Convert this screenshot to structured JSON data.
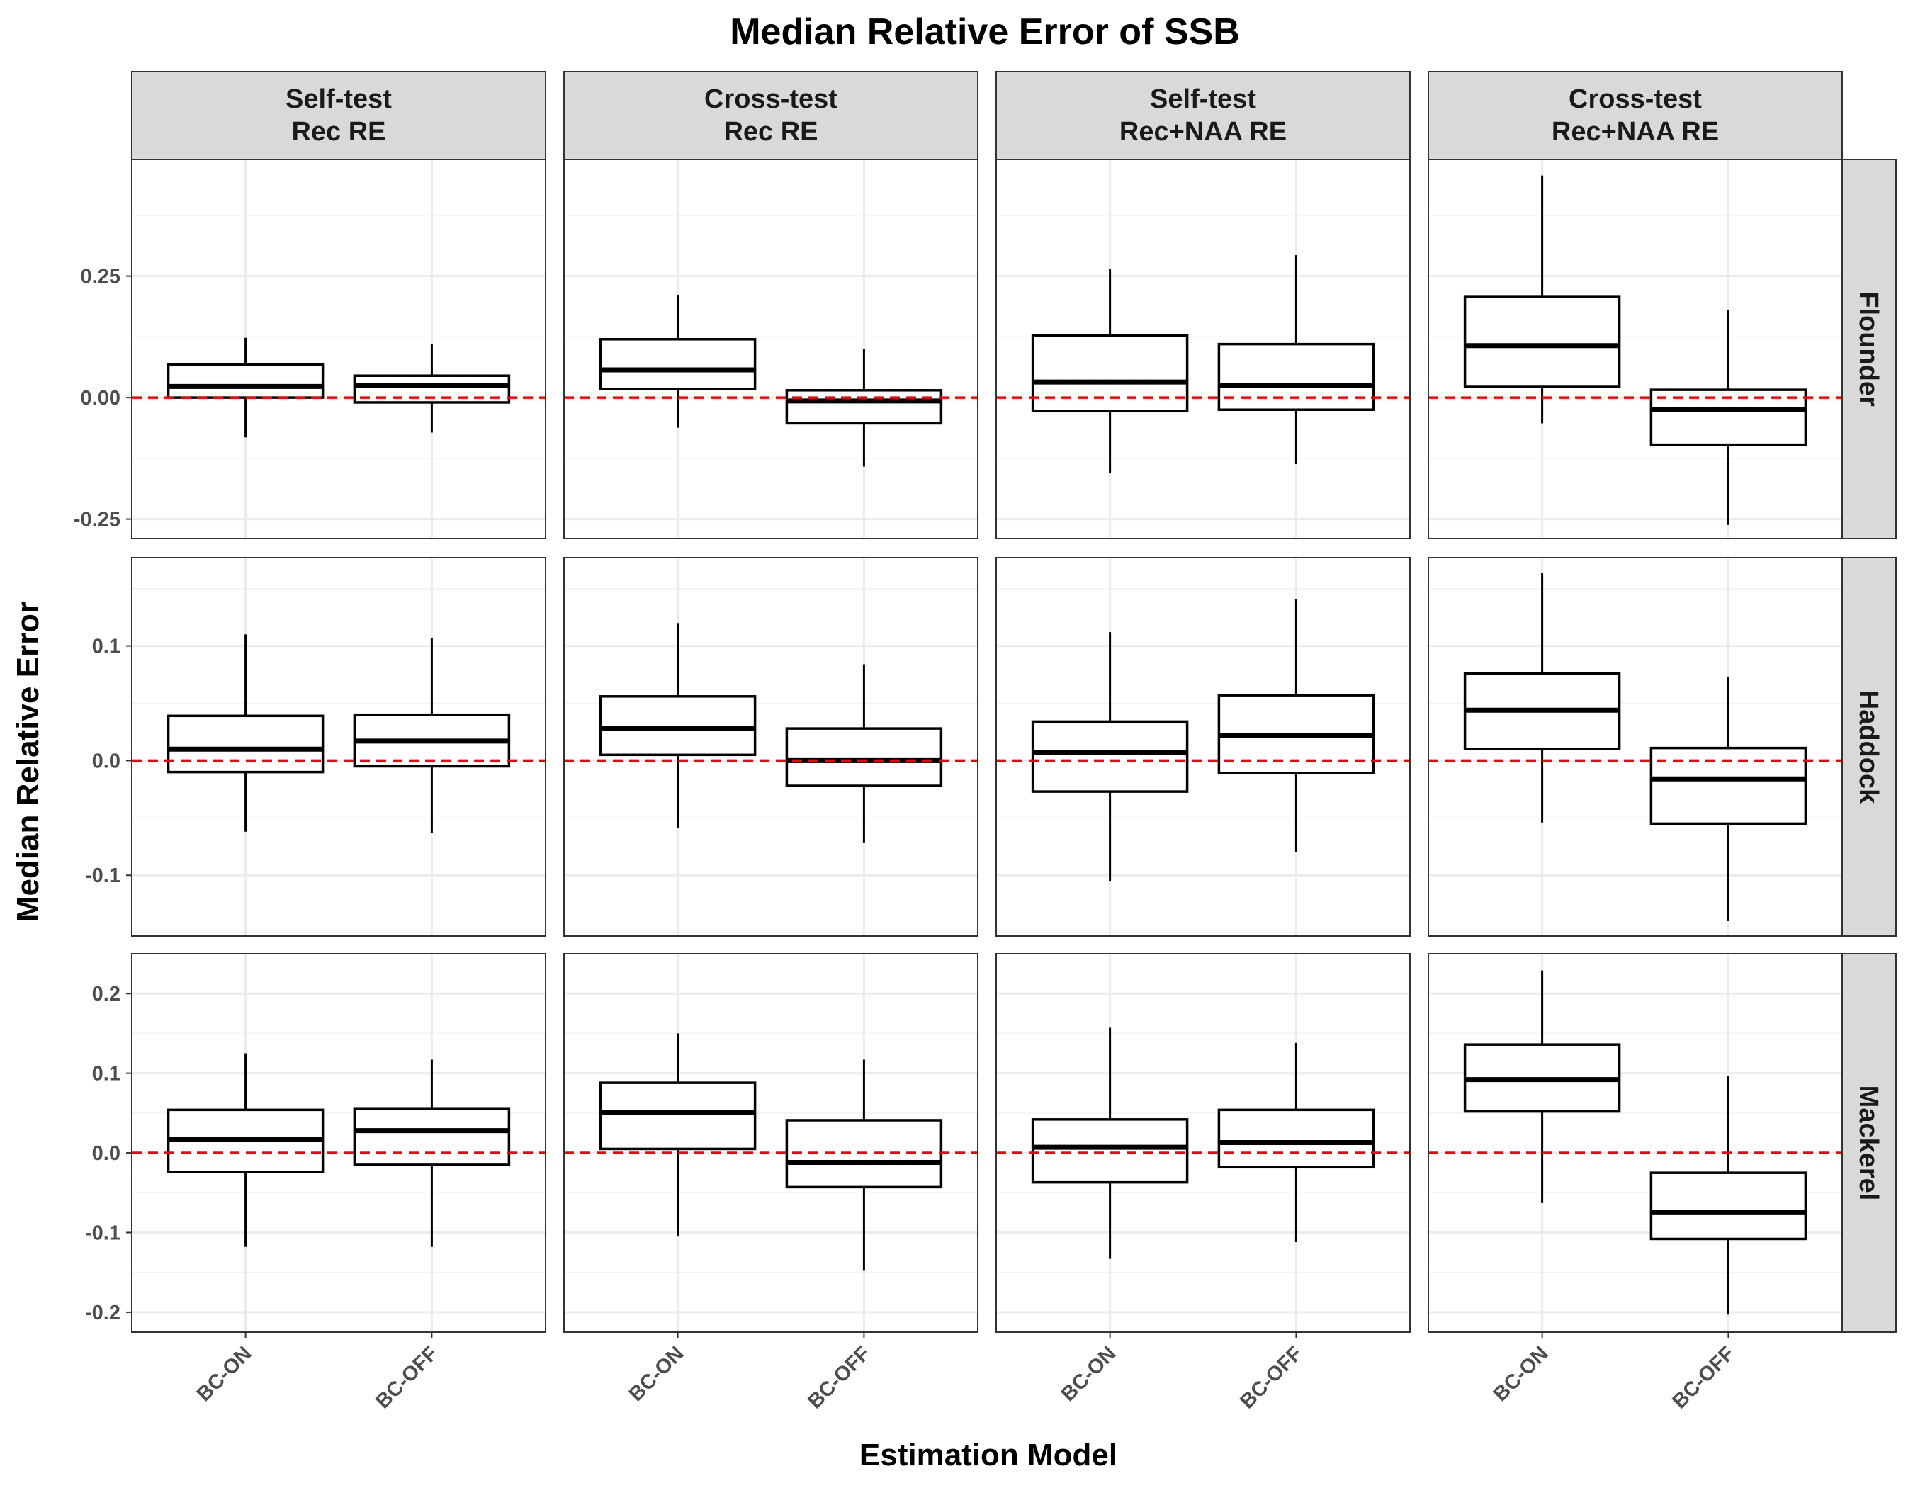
{
  "chart_data": {
    "type": "boxplot",
    "title": "Median Relative Error of SSB",
    "xlabel": "Estimation Model",
    "ylabel": "Median Relative Error",
    "categories": [
      "BC-ON",
      "BC-OFF"
    ],
    "columns": [
      "Self-test\nRec RE",
      "Cross-test\nRec RE",
      "Self-test\nRec+NAA RE",
      "Cross-test\nRec+NAA RE"
    ],
    "rows": [
      {
        "name": "Flounder",
        "ylim": [
          -0.29,
          0.49
        ],
        "yticks": [
          -0.25,
          0.0,
          0.25
        ],
        "tick_labels": [
          "-0.25",
          "0.00",
          "0.25"
        ],
        "panels": [
          [
            {
              "category": "BC-ON",
              "min": -0.082,
              "q1": 0.0,
              "median": 0.023,
              "q3": 0.068,
              "max": 0.123
            },
            {
              "category": "BC-OFF",
              "min": -0.072,
              "q1": -0.01,
              "median": 0.025,
              "q3": 0.045,
              "max": 0.11
            }
          ],
          [
            {
              "category": "BC-ON",
              "min": -0.062,
              "q1": 0.018,
              "median": 0.057,
              "q3": 0.12,
              "max": 0.21
            },
            {
              "category": "BC-OFF",
              "min": -0.142,
              "q1": -0.053,
              "median": -0.007,
              "q3": 0.015,
              "max": 0.1
            }
          ],
          [
            {
              "category": "BC-ON",
              "min": -0.155,
              "q1": -0.028,
              "median": 0.032,
              "q3": 0.128,
              "max": 0.265
            },
            {
              "category": "BC-OFF",
              "min": -0.137,
              "q1": -0.025,
              "median": 0.025,
              "q3": 0.11,
              "max": 0.293
            }
          ],
          [
            {
              "category": "BC-ON",
              "min": -0.053,
              "q1": 0.022,
              "median": 0.107,
              "q3": 0.207,
              "max": 0.457
            },
            {
              "category": "BC-OFF",
              "min": -0.262,
              "q1": -0.097,
              "median": -0.025,
              "q3": 0.016,
              "max": 0.181
            }
          ]
        ]
      },
      {
        "name": "Haddock",
        "ylim": [
          -0.153,
          0.177
        ],
        "yticks": [
          -0.1,
          0.0,
          0.1
        ],
        "tick_labels": [
          "-0.1",
          "0.0",
          "0.1"
        ],
        "panels": [
          [
            {
              "category": "BC-ON",
              "min": -0.062,
              "q1": -0.01,
              "median": 0.01,
              "q3": 0.039,
              "max": 0.11
            },
            {
              "category": "BC-OFF",
              "min": -0.063,
              "q1": -0.005,
              "median": 0.017,
              "q3": 0.04,
              "max": 0.107
            }
          ],
          [
            {
              "category": "BC-ON",
              "min": -0.059,
              "q1": 0.005,
              "median": 0.028,
              "q3": 0.056,
              "max": 0.12
            },
            {
              "category": "BC-OFF",
              "min": -0.072,
              "q1": -0.022,
              "median": 0.0,
              "q3": 0.028,
              "max": 0.084
            }
          ],
          [
            {
              "category": "BC-ON",
              "min": -0.105,
              "q1": -0.027,
              "median": 0.007,
              "q3": 0.034,
              "max": 0.112
            },
            {
              "category": "BC-OFF",
              "min": -0.08,
              "q1": -0.011,
              "median": 0.022,
              "q3": 0.057,
              "max": 0.141
            }
          ],
          [
            {
              "category": "BC-ON",
              "min": -0.054,
              "q1": 0.01,
              "median": 0.044,
              "q3": 0.076,
              "max": 0.164
            },
            {
              "category": "BC-OFF",
              "min": -0.14,
              "q1": -0.055,
              "median": -0.016,
              "q3": 0.011,
              "max": 0.073
            }
          ]
        ]
      },
      {
        "name": "Mackerel",
        "ylim": [
          -0.225,
          0.25
        ],
        "yticks": [
          -0.2,
          -0.1,
          0.0,
          0.1,
          0.2
        ],
        "tick_labels": [
          "-0.2",
          "-0.1",
          "0.0",
          "0.1",
          "0.2"
        ],
        "panels": [
          [
            {
              "category": "BC-ON",
              "min": -0.118,
              "q1": -0.024,
              "median": 0.017,
              "q3": 0.054,
              "max": 0.125
            },
            {
              "category": "BC-OFF",
              "min": -0.118,
              "q1": -0.015,
              "median": 0.028,
              "q3": 0.055,
              "max": 0.117
            }
          ],
          [
            {
              "category": "BC-ON",
              "min": -0.105,
              "q1": 0.005,
              "median": 0.051,
              "q3": 0.088,
              "max": 0.15
            },
            {
              "category": "BC-OFF",
              "min": -0.148,
              "q1": -0.043,
              "median": -0.012,
              "q3": 0.041,
              "max": 0.117
            }
          ],
          [
            {
              "category": "BC-ON",
              "min": -0.133,
              "q1": -0.037,
              "median": 0.007,
              "q3": 0.042,
              "max": 0.157
            },
            {
              "category": "BC-OFF",
              "min": -0.112,
              "q1": -0.018,
              "median": 0.013,
              "q3": 0.054,
              "max": 0.138
            }
          ],
          [
            {
              "category": "BC-ON",
              "min": -0.063,
              "q1": 0.052,
              "median": 0.092,
              "q3": 0.136,
              "max": 0.229
            },
            {
              "category": "BC-OFF",
              "min": -0.203,
              "q1": -0.108,
              "median": -0.075,
              "q3": -0.025,
              "max": 0.096
            }
          ]
        ]
      }
    ],
    "reference_line": {
      "y": 0.0,
      "color": "#ff0000",
      "style": "dashed"
    },
    "grid": true,
    "colors": {
      "box_fill": "#ffffff",
      "box_stroke": "#000000",
      "strip_fill": "#d9d9d9",
      "grid_major": "#ebebeb",
      "grid_minor": "#f2f2f2",
      "tick_text": "#4d4d4d"
    }
  }
}
